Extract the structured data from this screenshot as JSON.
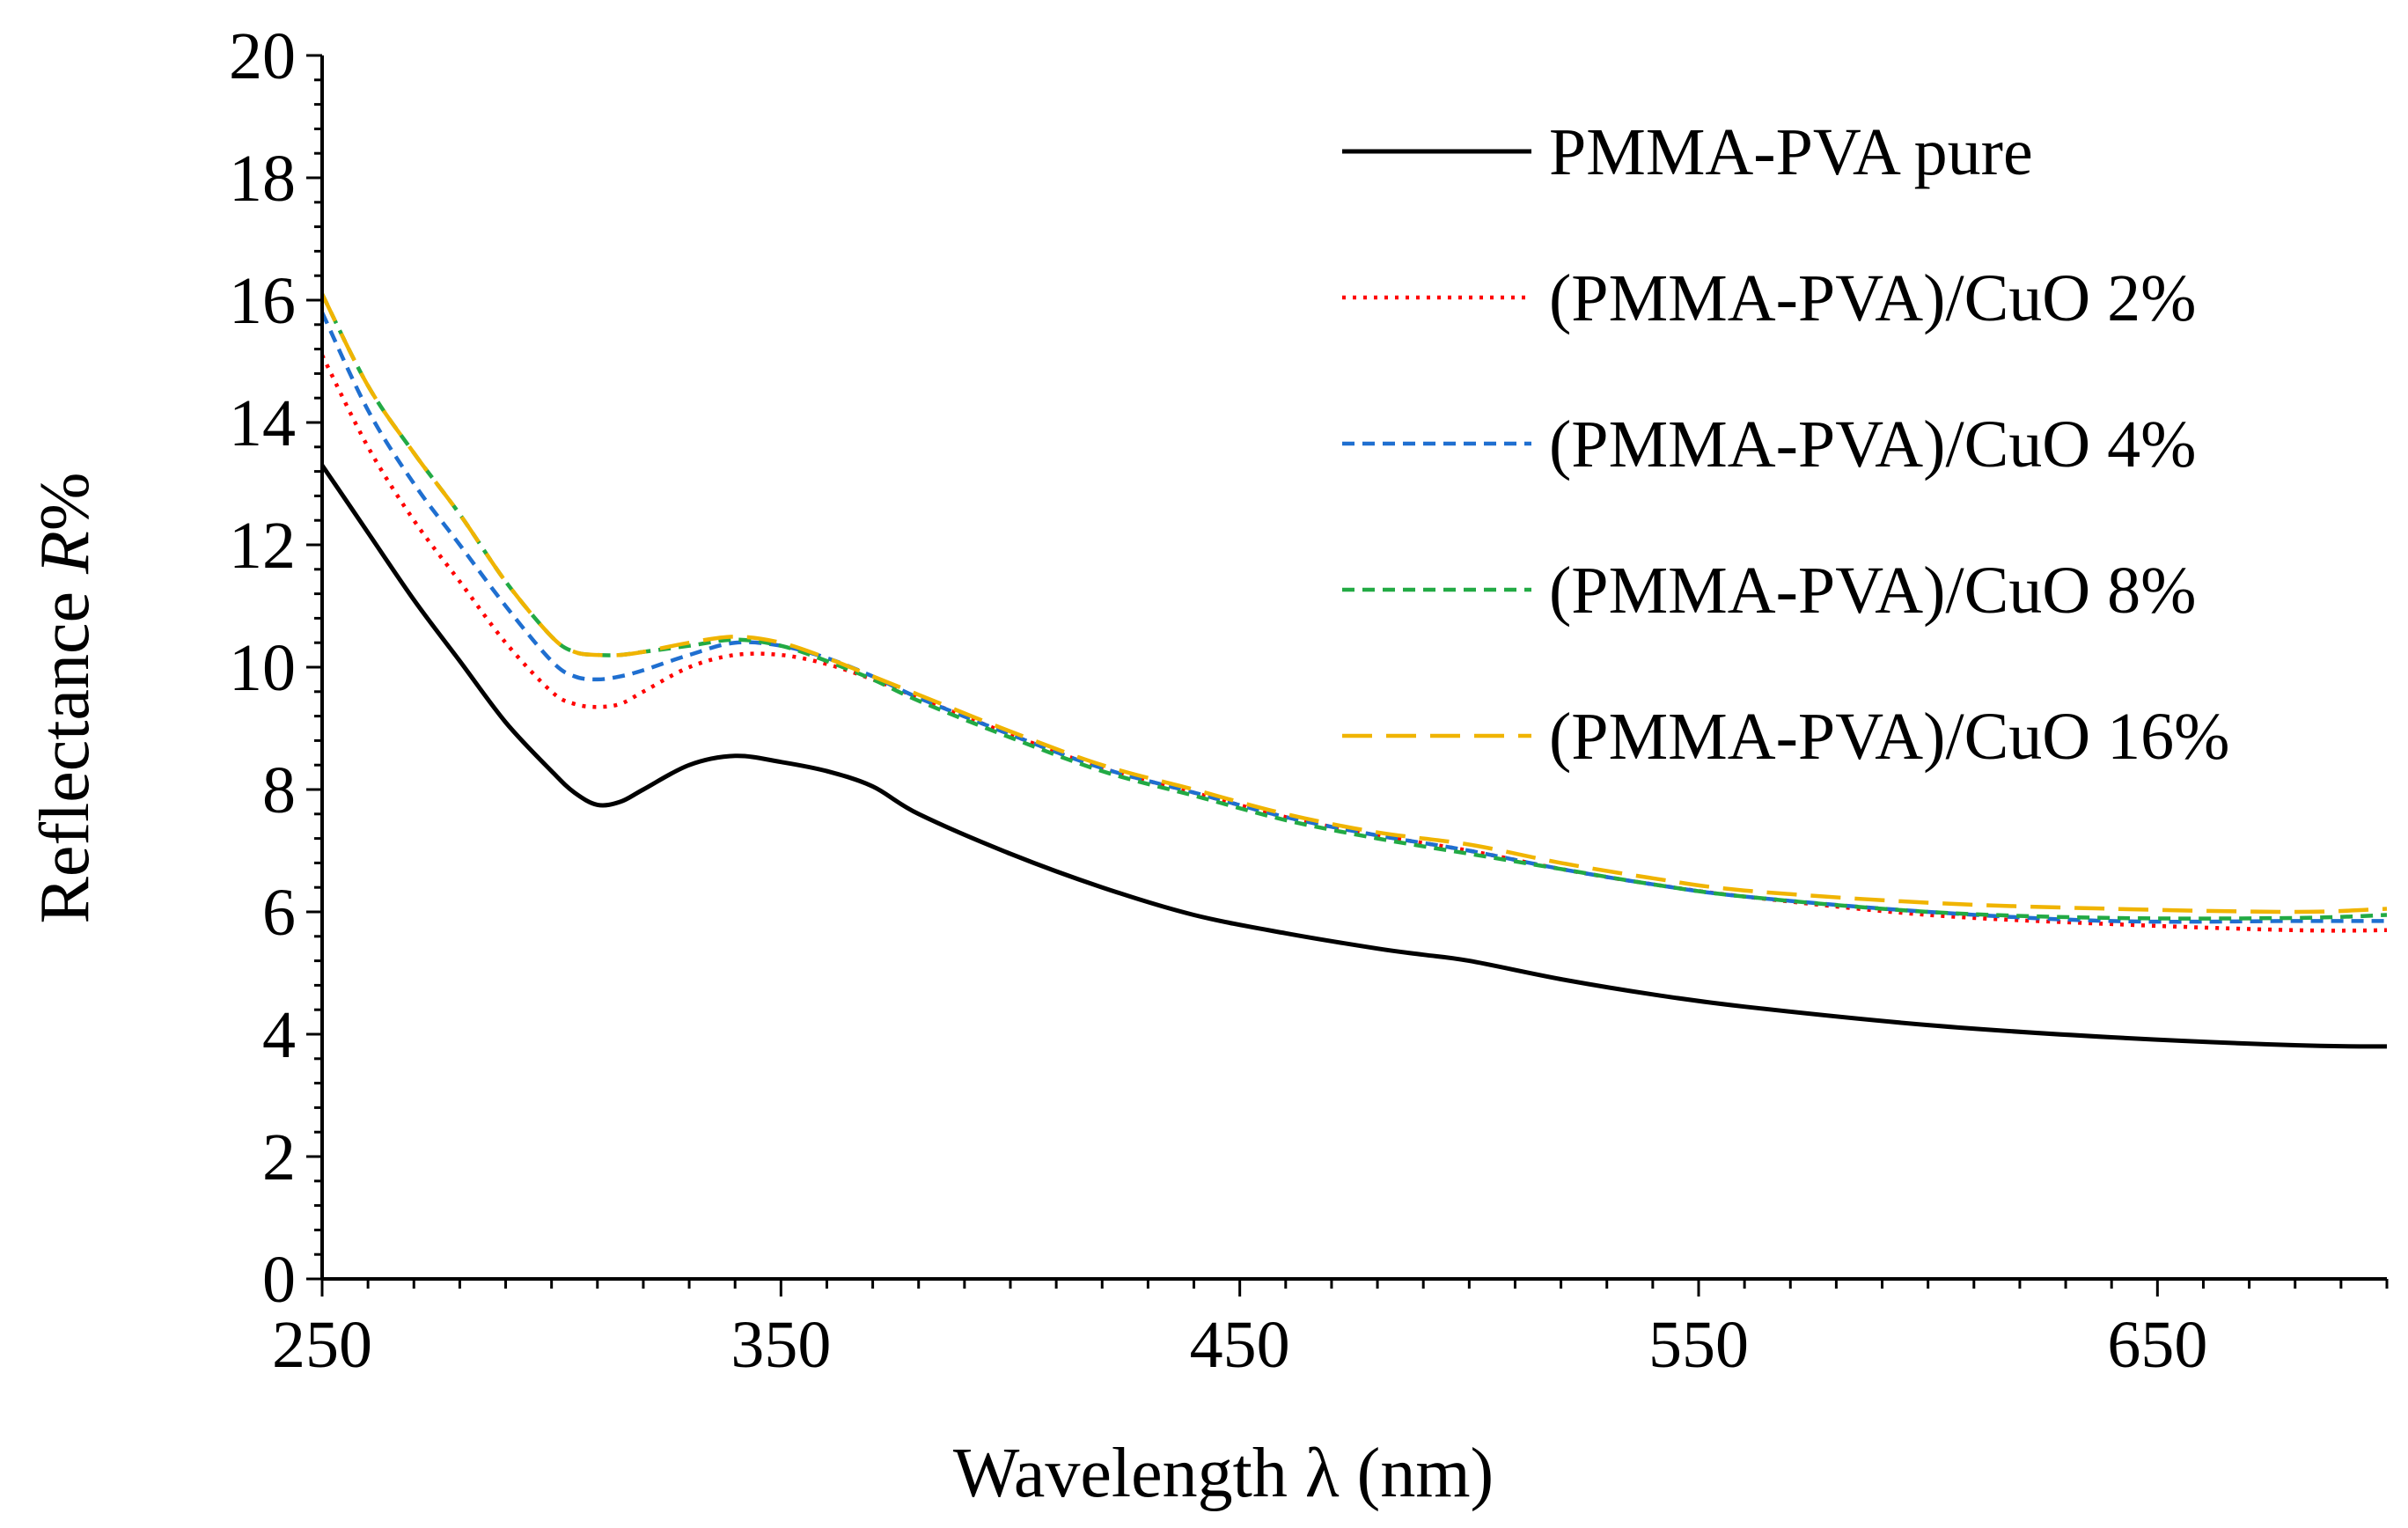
{
  "chart_data": {
    "type": "line",
    "title": "",
    "xlabel": "Wavelength λ (nm)",
    "ylabel_text": "Reflectance ",
    "ylabel_italic": "R",
    "ylabel_suffix": "%",
    "xlim": [
      250,
      700
    ],
    "ylim": [
      0,
      20
    ],
    "x_ticks": [
      "250",
      "350",
      "450",
      "550",
      "650"
    ],
    "y_ticks": [
      "0",
      "2",
      "4",
      "6",
      "8",
      "10",
      "12",
      "14",
      "16",
      "18",
      "20"
    ],
    "legend_position": "top-right",
    "grid": false,
    "series": [
      {
        "name": "PMMA-PVA pure",
        "color": "#000000",
        "style": "solid",
        "x": [
          250,
          260,
          270,
          280,
          290,
          300,
          305,
          310,
          315,
          320,
          330,
          340,
          350,
          360,
          370,
          380,
          400,
          420,
          440,
          460,
          480,
          490,
          500,
          520,
          540,
          560,
          600,
          640,
          680,
          700
        ],
        "y": [
          13.3,
          12.2,
          11.1,
          10.1,
          9.1,
          8.3,
          7.95,
          7.75,
          7.8,
          8.0,
          8.4,
          8.55,
          8.45,
          8.3,
          8.05,
          7.6,
          6.95,
          6.4,
          5.95,
          5.65,
          5.4,
          5.3,
          5.2,
          4.9,
          4.65,
          4.45,
          4.15,
          3.95,
          3.82,
          3.8
        ]
      },
      {
        "name": "(PMMA-PVA)/CuO 2%",
        "color": "#ff0000",
        "style": "dotted",
        "x": [
          250,
          260,
          270,
          280,
          290,
          300,
          305,
          310,
          315,
          320,
          330,
          340,
          350,
          360,
          370,
          380,
          400,
          420,
          440,
          460,
          480,
          500,
          520,
          540,
          560,
          600,
          640,
          680,
          700
        ],
        "y": [
          15.1,
          13.6,
          12.4,
          11.4,
          10.4,
          9.6,
          9.4,
          9.35,
          9.4,
          9.6,
          10.0,
          10.2,
          10.2,
          10.05,
          9.8,
          9.5,
          8.9,
          8.35,
          7.95,
          7.55,
          7.25,
          7.0,
          6.7,
          6.45,
          6.25,
          5.95,
          5.8,
          5.7,
          5.7
        ]
      },
      {
        "name": "(PMMA-PVA)/CuO 4%",
        "color": "#1f6fd0",
        "style": "dashed",
        "x": [
          250,
          260,
          270,
          280,
          290,
          300,
          305,
          310,
          315,
          320,
          330,
          340,
          350,
          360,
          370,
          380,
          400,
          420,
          440,
          460,
          480,
          500,
          520,
          540,
          560,
          600,
          640,
          680,
          700
        ],
        "y": [
          15.8,
          14.2,
          13.0,
          12.0,
          11.0,
          10.1,
          9.85,
          9.8,
          9.85,
          9.95,
          10.2,
          10.4,
          10.35,
          10.15,
          9.85,
          9.5,
          8.9,
          8.35,
          7.95,
          7.55,
          7.25,
          7.0,
          6.7,
          6.45,
          6.25,
          6.0,
          5.85,
          5.85,
          5.85
        ]
      },
      {
        "name": "(PMMA-PVA)/CuO 8%",
        "color": "#22aa44",
        "style": "dashed",
        "x": [
          250,
          260,
          270,
          280,
          290,
          300,
          305,
          310,
          315,
          320,
          330,
          340,
          350,
          360,
          370,
          380,
          400,
          420,
          440,
          460,
          480,
          500,
          520,
          540,
          560,
          600,
          640,
          680,
          700
        ],
        "y": [
          16.1,
          14.6,
          13.5,
          12.5,
          11.4,
          10.5,
          10.25,
          10.2,
          10.2,
          10.25,
          10.35,
          10.45,
          10.35,
          10.1,
          9.8,
          9.45,
          8.85,
          8.3,
          7.9,
          7.5,
          7.2,
          6.95,
          6.7,
          6.45,
          6.25,
          6.0,
          5.9,
          5.9,
          5.95
        ]
      },
      {
        "name": "(PMMA-PVA)/CuO 16%",
        "color": "#f0b400",
        "style": "longdash",
        "x": [
          250,
          260,
          270,
          280,
          290,
          300,
          305,
          310,
          315,
          320,
          330,
          340,
          350,
          360,
          370,
          380,
          400,
          420,
          440,
          460,
          480,
          500,
          520,
          540,
          560,
          600,
          640,
          680,
          700
        ],
        "y": [
          16.1,
          14.6,
          13.5,
          12.5,
          11.4,
          10.5,
          10.25,
          10.2,
          10.2,
          10.25,
          10.4,
          10.5,
          10.4,
          10.15,
          9.85,
          9.55,
          8.95,
          8.4,
          8.0,
          7.6,
          7.3,
          7.1,
          6.8,
          6.55,
          6.35,
          6.15,
          6.05,
          6.0,
          6.05
        ]
      }
    ]
  }
}
